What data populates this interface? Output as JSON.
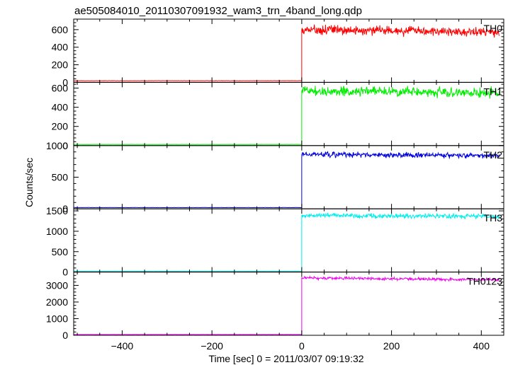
{
  "chart_data": {
    "type": "line",
    "title": "ae505084010_20110307091932_wam3_trn_4band_long.qdp",
    "xlabel": "Time [sec] 0 = 2011/03/07 09:19:32",
    "ylabel": "Counts/sec",
    "xlim": [
      -508,
      450
    ],
    "x_ticks": [
      -400,
      -200,
      0,
      200,
      400
    ],
    "trigger_time": 0,
    "panels": [
      {
        "name": "TH0",
        "color": "#ff0000",
        "ylim": [
          0,
          720
        ],
        "yticks": [
          0,
          200,
          400,
          600
        ],
        "pre_level": 18,
        "post_level": 600,
        "post_noise": 35,
        "post_trend": -30
      },
      {
        "name": "TH1",
        "color": "#00ee00",
        "ylim": [
          0,
          660
        ],
        "yticks": [
          0,
          200,
          400,
          600
        ],
        "pre_level": 12,
        "post_level": 570,
        "post_noise": 35,
        "post_trend": -20
      },
      {
        "name": "TH2",
        "color": "#0000dd",
        "ylim": [
          0,
          1000
        ],
        "yticks": [
          0,
          500,
          1000
        ],
        "pre_level": 20,
        "post_level": 860,
        "post_noise": 30,
        "post_trend": -20
      },
      {
        "name": "TH3",
        "color": "#00eeee",
        "ylim": [
          0,
          1550
        ],
        "yticks": [
          0,
          500,
          1000,
          1500
        ],
        "pre_level": 20,
        "post_level": 1390,
        "post_noise": 40,
        "post_trend": -30
      },
      {
        "name": "TH0123",
        "color": "#ee00ee",
        "ylim": [
          0,
          3800
        ],
        "yticks": [
          0,
          1000,
          2000,
          3000
        ],
        "pre_level": 50,
        "post_level": 3450,
        "post_noise": 60,
        "post_trend": -120
      }
    ]
  }
}
